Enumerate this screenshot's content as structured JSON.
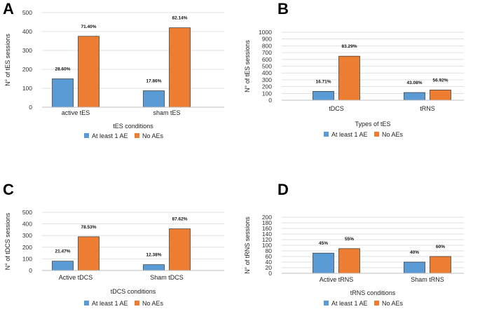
{
  "chart_data": [
    {
      "panel": "A",
      "type": "bar",
      "categories": [
        "active tES",
        "sham tES"
      ],
      "series": [
        {
          "name": "At least 1 AE",
          "color": "#5b9bd5",
          "values": [
            150,
            87
          ],
          "labels": [
            "28.60%",
            "17.86%"
          ]
        },
        {
          "name": "No AEs",
          "color": "#ed7d31",
          "values": [
            375,
            420
          ],
          "labels": [
            "71.40%",
            "82.14%"
          ]
        }
      ],
      "xlabel": "tES conditions",
      "ylabel": "N° of tES sessions",
      "ylim": [
        0,
        500
      ],
      "yticks": [
        0,
        100,
        200,
        300,
        400,
        500
      ],
      "legend": "bottom"
    },
    {
      "panel": "B",
      "type": "bar",
      "categories": [
        "tDCS",
        "tRNS"
      ],
      "series": [
        {
          "name": "At least 1 AE",
          "color": "#5b9bd5",
          "values": [
            130,
            113
          ],
          "labels": [
            "16.71%",
            "43.08%"
          ]
        },
        {
          "name": "No AEs",
          "color": "#ed7d31",
          "values": [
            648,
            150
          ],
          "labels": [
            "83.29%",
            "56.92%"
          ]
        }
      ],
      "xlabel": "Types of tES",
      "ylabel": "N° of tES sessions",
      "ylim": [
        0,
        1000
      ],
      "yticks": [
        0,
        100,
        200,
        300,
        400,
        500,
        600,
        700,
        800,
        900,
        1000
      ],
      "legend": "bottom"
    },
    {
      "panel": "C",
      "type": "bar",
      "categories": [
        "Active tDCS",
        "Sham tDCS"
      ],
      "series": [
        {
          "name": "At least 1 AE",
          "color": "#5b9bd5",
          "values": [
            80,
            50
          ],
          "labels": [
            "21.47%",
            "12.38%"
          ]
        },
        {
          "name": "No AEs",
          "color": "#ed7d31",
          "values": [
            290,
            358
          ],
          "labels": [
            "78.53%",
            "87.62%"
          ]
        }
      ],
      "xlabel": "tDCS conditions",
      "ylabel": "N° of tDCS sessions",
      "ylim": [
        0,
        500
      ],
      "yticks": [
        0,
        100,
        200,
        300,
        400,
        500
      ],
      "legend": "bottom"
    },
    {
      "panel": "D",
      "type": "bar",
      "categories": [
        "Active tRNS",
        "Sham tRNS"
      ],
      "series": [
        {
          "name": "At least 1 AE",
          "color": "#5b9bd5",
          "values": [
            72,
            40
          ],
          "labels": [
            "45%",
            "40%"
          ]
        },
        {
          "name": "No AEs",
          "color": "#ed7d31",
          "values": [
            88,
            60
          ],
          "labels": [
            "55%",
            "60%"
          ]
        }
      ],
      "xlabel": "tRNS conditions",
      "ylabel": "N° of tRNS sessions",
      "ylim": [
        0,
        200
      ],
      "yticks": [
        0,
        20,
        40,
        60,
        80,
        100,
        120,
        140,
        160,
        180,
        200
      ],
      "legend": "bottom"
    }
  ]
}
